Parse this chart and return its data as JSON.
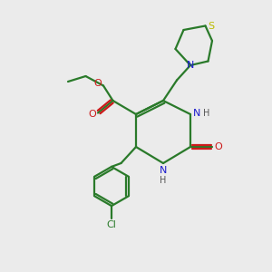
{
  "bg_color": "#ebebeb",
  "bond_color": "#2a7a2a",
  "N_color": "#1a1acc",
  "O_color": "#cc1a1a",
  "S_color": "#bbbb00",
  "Cl_color": "#2a7a2a",
  "line_width": 1.6,
  "fig_size": [
    3.0,
    3.0
  ],
  "dpi": 100,
  "xlim": [
    0,
    10
  ],
  "ylim": [
    0,
    10
  ]
}
